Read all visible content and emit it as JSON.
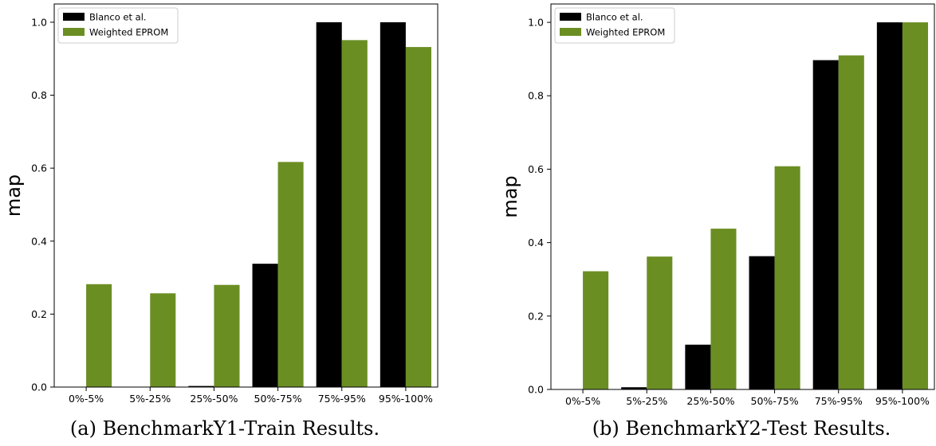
{
  "colors": {
    "series_a": "#000000",
    "series_b": "#6b8e23",
    "frame": "#000000",
    "legend_border": "#cccccc"
  },
  "chart_data": [
    {
      "type": "bar",
      "caption": "(a) BenchmarkY1-Train Results.",
      "categories": [
        "0%-5%",
        "5%-25%",
        "25%-50%",
        "50%-75%",
        "75%-95%",
        "95%-100%"
      ],
      "series": [
        {
          "name": "Blanco et al.",
          "values": [
            0.0,
            0.0,
            0.003,
            0.338,
            1.0,
            1.0
          ]
        },
        {
          "name": "Weighted EPROM",
          "values": [
            0.282,
            0.257,
            0.28,
            0.617,
            0.951,
            0.932
          ]
        }
      ],
      "ylabel": "map",
      "xlabel": "",
      "ylim": [
        0,
        1.05
      ],
      "yticks": [
        0.0,
        0.2,
        0.4,
        0.6,
        0.8,
        1.0
      ],
      "grid": false,
      "legend": "top-left"
    },
    {
      "type": "bar",
      "caption": "(b) BenchmarkY2-Test Results.",
      "categories": [
        "0%-5%",
        "5%-25%",
        "25%-50%",
        "50%-75%",
        "75%-95%",
        "95%-100%"
      ],
      "series": [
        {
          "name": "Blanco et al.",
          "values": [
            0.0,
            0.006,
            0.122,
            0.363,
            0.897,
            1.0
          ]
        },
        {
          "name": "Weighted EPROM",
          "values": [
            0.322,
            0.362,
            0.438,
            0.608,
            0.91,
            1.0
          ]
        }
      ],
      "ylabel": "map",
      "xlabel": "",
      "ylim": [
        0,
        1.05
      ],
      "yticks": [
        0.0,
        0.2,
        0.4,
        0.6,
        0.8,
        1.0
      ],
      "grid": false,
      "legend": "top-left"
    }
  ]
}
